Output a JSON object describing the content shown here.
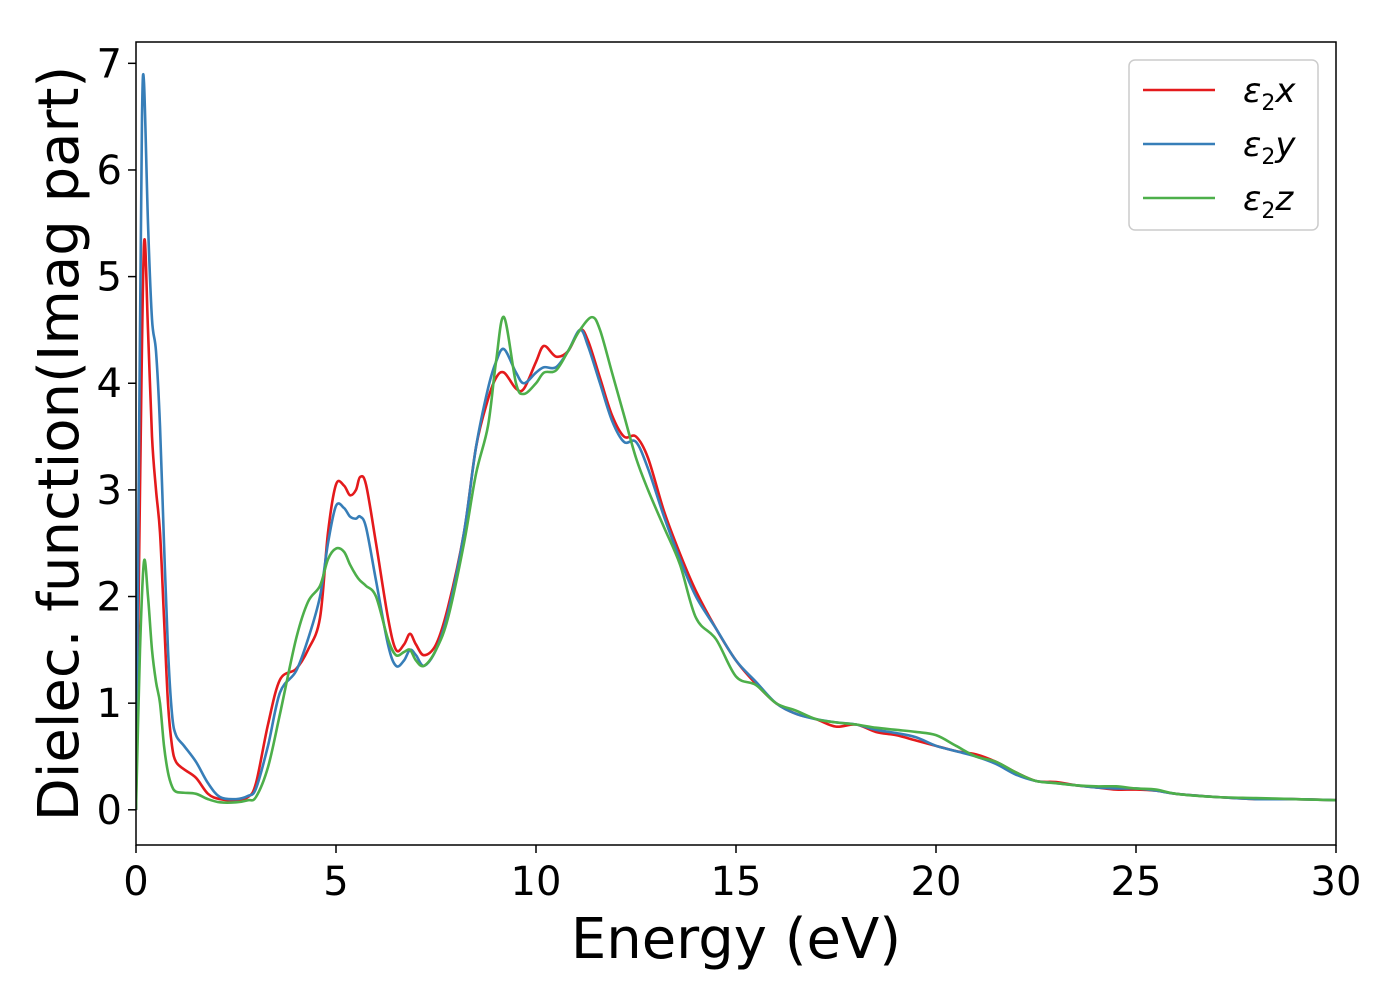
{
  "chart_data": {
    "type": "line",
    "xlabel": "Energy (eV)",
    "ylabel": "Dielec. function(Imag part)",
    "xlim": [
      0,
      30
    ],
    "ylim": [
      -0.33,
      7.2
    ],
    "xticks": [
      0,
      5,
      10,
      15,
      20,
      25,
      30
    ],
    "yticks": [
      0,
      1,
      2,
      3,
      4,
      5,
      6,
      7
    ],
    "grid": false,
    "legend_position": "top-right",
    "series": [
      {
        "name": "ε2x",
        "label_base": "ε",
        "label_sub": "2",
        "label_tail": "x",
        "color": "#e41a1c",
        "points": [
          [
            0,
            0
          ],
          [
            0.1,
            3.0
          ],
          [
            0.2,
            5.3
          ],
          [
            0.3,
            4.5
          ],
          [
            0.4,
            3.5
          ],
          [
            0.5,
            3.0
          ],
          [
            0.6,
            2.6
          ],
          [
            0.7,
            1.8
          ],
          [
            0.8,
            1.0
          ],
          [
            0.9,
            0.6
          ],
          [
            1.0,
            0.45
          ],
          [
            1.2,
            0.38
          ],
          [
            1.5,
            0.3
          ],
          [
            1.8,
            0.15
          ],
          [
            2.1,
            0.1
          ],
          [
            2.5,
            0.09
          ],
          [
            2.8,
            0.12
          ],
          [
            3.0,
            0.25
          ],
          [
            3.3,
            0.8
          ],
          [
            3.6,
            1.22
          ],
          [
            4.0,
            1.32
          ],
          [
            4.3,
            1.5
          ],
          [
            4.6,
            1.8
          ],
          [
            4.8,
            2.6
          ],
          [
            5.0,
            3.05
          ],
          [
            5.2,
            3.04
          ],
          [
            5.35,
            2.95
          ],
          [
            5.5,
            3.0
          ],
          [
            5.6,
            3.12
          ],
          [
            5.75,
            3.05
          ],
          [
            6.0,
            2.5
          ],
          [
            6.3,
            1.8
          ],
          [
            6.5,
            1.5
          ],
          [
            6.7,
            1.55
          ],
          [
            6.85,
            1.65
          ],
          [
            7.0,
            1.55
          ],
          [
            7.2,
            1.45
          ],
          [
            7.5,
            1.55
          ],
          [
            7.8,
            1.9
          ],
          [
            8.2,
            2.6
          ],
          [
            8.5,
            3.4
          ],
          [
            8.8,
            3.85
          ],
          [
            9.0,
            4.05
          ],
          [
            9.2,
            4.1
          ],
          [
            9.5,
            3.95
          ],
          [
            9.7,
            3.95
          ],
          [
            10.0,
            4.2
          ],
          [
            10.2,
            4.35
          ],
          [
            10.5,
            4.25
          ],
          [
            10.8,
            4.3
          ],
          [
            11.1,
            4.5
          ],
          [
            11.3,
            4.4
          ],
          [
            11.6,
            4.05
          ],
          [
            11.9,
            3.7
          ],
          [
            12.2,
            3.5
          ],
          [
            12.5,
            3.5
          ],
          [
            12.8,
            3.3
          ],
          [
            13.2,
            2.8
          ],
          [
            13.6,
            2.4
          ],
          [
            14.0,
            2.05
          ],
          [
            14.5,
            1.7
          ],
          [
            15.0,
            1.4
          ],
          [
            15.5,
            1.18
          ],
          [
            16.0,
            1.0
          ],
          [
            16.5,
            0.9
          ],
          [
            17.0,
            0.85
          ],
          [
            17.5,
            0.78
          ],
          [
            18.0,
            0.8
          ],
          [
            18.5,
            0.73
          ],
          [
            19.0,
            0.7
          ],
          [
            19.5,
            0.65
          ],
          [
            20.0,
            0.6
          ],
          [
            20.5,
            0.55
          ],
          [
            21.0,
            0.52
          ],
          [
            21.5,
            0.45
          ],
          [
            22.0,
            0.35
          ],
          [
            22.5,
            0.27
          ],
          [
            23.0,
            0.26
          ],
          [
            23.5,
            0.23
          ],
          [
            24.0,
            0.21
          ],
          [
            24.5,
            0.19
          ],
          [
            25.0,
            0.19
          ],
          [
            25.5,
            0.18
          ],
          [
            26.0,
            0.15
          ],
          [
            27.0,
            0.12
          ],
          [
            28.0,
            0.1
          ],
          [
            29.0,
            0.1
          ],
          [
            30.0,
            0.09
          ]
        ]
      },
      {
        "name": "ε2y",
        "label_base": "ε",
        "label_sub": "2",
        "label_tail": "y",
        "color": "#377eb8",
        "points": [
          [
            0,
            0
          ],
          [
            0.1,
            4.5
          ],
          [
            0.15,
            6.5
          ],
          [
            0.2,
            6.82
          ],
          [
            0.3,
            5.5
          ],
          [
            0.4,
            4.6
          ],
          [
            0.5,
            4.3
          ],
          [
            0.6,
            3.6
          ],
          [
            0.7,
            2.5
          ],
          [
            0.8,
            1.5
          ],
          [
            0.9,
            0.9
          ],
          [
            1.0,
            0.7
          ],
          [
            1.2,
            0.6
          ],
          [
            1.5,
            0.45
          ],
          [
            1.8,
            0.25
          ],
          [
            2.1,
            0.12
          ],
          [
            2.5,
            0.1
          ],
          [
            2.8,
            0.13
          ],
          [
            3.0,
            0.2
          ],
          [
            3.3,
            0.6
          ],
          [
            3.6,
            1.1
          ],
          [
            4.0,
            1.3
          ],
          [
            4.3,
            1.6
          ],
          [
            4.6,
            2.0
          ],
          [
            4.8,
            2.5
          ],
          [
            5.0,
            2.85
          ],
          [
            5.2,
            2.83
          ],
          [
            5.35,
            2.75
          ],
          [
            5.5,
            2.73
          ],
          [
            5.6,
            2.75
          ],
          [
            5.75,
            2.65
          ],
          [
            6.0,
            2.15
          ],
          [
            6.3,
            1.55
          ],
          [
            6.5,
            1.35
          ],
          [
            6.7,
            1.4
          ],
          [
            6.85,
            1.5
          ],
          [
            7.0,
            1.45
          ],
          [
            7.2,
            1.35
          ],
          [
            7.5,
            1.5
          ],
          [
            7.8,
            1.85
          ],
          [
            8.2,
            2.6
          ],
          [
            8.5,
            3.4
          ],
          [
            8.8,
            3.95
          ],
          [
            9.0,
            4.2
          ],
          [
            9.2,
            4.32
          ],
          [
            9.5,
            4.1
          ],
          [
            9.7,
            4.0
          ],
          [
            10.0,
            4.1
          ],
          [
            10.2,
            4.15
          ],
          [
            10.5,
            4.15
          ],
          [
            10.8,
            4.3
          ],
          [
            11.1,
            4.5
          ],
          [
            11.3,
            4.35
          ],
          [
            11.6,
            4.0
          ],
          [
            11.9,
            3.65
          ],
          [
            12.2,
            3.45
          ],
          [
            12.5,
            3.45
          ],
          [
            12.8,
            3.2
          ],
          [
            13.2,
            2.75
          ],
          [
            13.6,
            2.35
          ],
          [
            14.0,
            2.0
          ],
          [
            14.5,
            1.7
          ],
          [
            15.0,
            1.4
          ],
          [
            15.5,
            1.2
          ],
          [
            16.0,
            1.0
          ],
          [
            16.5,
            0.9
          ],
          [
            17.0,
            0.85
          ],
          [
            17.5,
            0.82
          ],
          [
            18.0,
            0.8
          ],
          [
            18.5,
            0.75
          ],
          [
            19.0,
            0.72
          ],
          [
            19.5,
            0.68
          ],
          [
            20.0,
            0.6
          ],
          [
            20.5,
            0.55
          ],
          [
            21.0,
            0.5
          ],
          [
            21.5,
            0.43
          ],
          [
            22.0,
            0.33
          ],
          [
            22.5,
            0.27
          ],
          [
            23.0,
            0.25
          ],
          [
            23.5,
            0.23
          ],
          [
            24.0,
            0.21
          ],
          [
            24.5,
            0.2
          ],
          [
            25.0,
            0.2
          ],
          [
            25.5,
            0.18
          ],
          [
            26.0,
            0.15
          ],
          [
            27.0,
            0.12
          ],
          [
            28.0,
            0.1
          ],
          [
            29.0,
            0.1
          ],
          [
            30.0,
            0.09
          ]
        ]
      },
      {
        "name": "ε2z",
        "label_base": "ε",
        "label_sub": "2",
        "label_tail": "z",
        "color": "#4daf4a",
        "points": [
          [
            0,
            0
          ],
          [
            0.1,
            1.5
          ],
          [
            0.2,
            2.33
          ],
          [
            0.3,
            2.0
          ],
          [
            0.4,
            1.5
          ],
          [
            0.5,
            1.2
          ],
          [
            0.6,
            1.0
          ],
          [
            0.7,
            0.6
          ],
          [
            0.8,
            0.35
          ],
          [
            0.9,
            0.22
          ],
          [
            1.0,
            0.17
          ],
          [
            1.2,
            0.16
          ],
          [
            1.5,
            0.15
          ],
          [
            1.8,
            0.1
          ],
          [
            2.1,
            0.07
          ],
          [
            2.5,
            0.07
          ],
          [
            2.8,
            0.09
          ],
          [
            3.0,
            0.12
          ],
          [
            3.3,
            0.4
          ],
          [
            3.6,
            0.9
          ],
          [
            4.0,
            1.6
          ],
          [
            4.3,
            1.95
          ],
          [
            4.6,
            2.1
          ],
          [
            4.8,
            2.35
          ],
          [
            5.0,
            2.45
          ],
          [
            5.2,
            2.42
          ],
          [
            5.35,
            2.3
          ],
          [
            5.5,
            2.2
          ],
          [
            5.6,
            2.15
          ],
          [
            5.75,
            2.1
          ],
          [
            6.0,
            2.0
          ],
          [
            6.3,
            1.6
          ],
          [
            6.5,
            1.45
          ],
          [
            6.7,
            1.48
          ],
          [
            6.85,
            1.5
          ],
          [
            7.0,
            1.4
          ],
          [
            7.2,
            1.35
          ],
          [
            7.5,
            1.5
          ],
          [
            7.8,
            1.8
          ],
          [
            8.2,
            2.5
          ],
          [
            8.5,
            3.15
          ],
          [
            8.8,
            3.6
          ],
          [
            9.0,
            4.2
          ],
          [
            9.2,
            4.62
          ],
          [
            9.5,
            4.0
          ],
          [
            9.7,
            3.9
          ],
          [
            10.0,
            4.0
          ],
          [
            10.2,
            4.1
          ],
          [
            10.5,
            4.12
          ],
          [
            10.8,
            4.3
          ],
          [
            11.1,
            4.5
          ],
          [
            11.4,
            4.62
          ],
          [
            11.6,
            4.5
          ],
          [
            11.9,
            4.1
          ],
          [
            12.2,
            3.7
          ],
          [
            12.5,
            3.3
          ],
          [
            12.8,
            3.0
          ],
          [
            13.2,
            2.65
          ],
          [
            13.6,
            2.3
          ],
          [
            14.0,
            1.8
          ],
          [
            14.5,
            1.6
          ],
          [
            15.0,
            1.25
          ],
          [
            15.5,
            1.17
          ],
          [
            16.0,
            1.0
          ],
          [
            16.5,
            0.93
          ],
          [
            17.0,
            0.85
          ],
          [
            17.5,
            0.82
          ],
          [
            18.0,
            0.8
          ],
          [
            18.5,
            0.77
          ],
          [
            19.0,
            0.75
          ],
          [
            19.5,
            0.73
          ],
          [
            20.0,
            0.7
          ],
          [
            20.5,
            0.6
          ],
          [
            21.0,
            0.5
          ],
          [
            21.5,
            0.45
          ],
          [
            22.0,
            0.35
          ],
          [
            22.5,
            0.27
          ],
          [
            23.0,
            0.25
          ],
          [
            23.5,
            0.23
          ],
          [
            24.0,
            0.22
          ],
          [
            24.5,
            0.22
          ],
          [
            25.0,
            0.2
          ],
          [
            25.5,
            0.19
          ],
          [
            26.0,
            0.15
          ],
          [
            27.0,
            0.12
          ],
          [
            28.0,
            0.11
          ],
          [
            29.0,
            0.1
          ],
          [
            30.0,
            0.09
          ]
        ]
      }
    ]
  }
}
